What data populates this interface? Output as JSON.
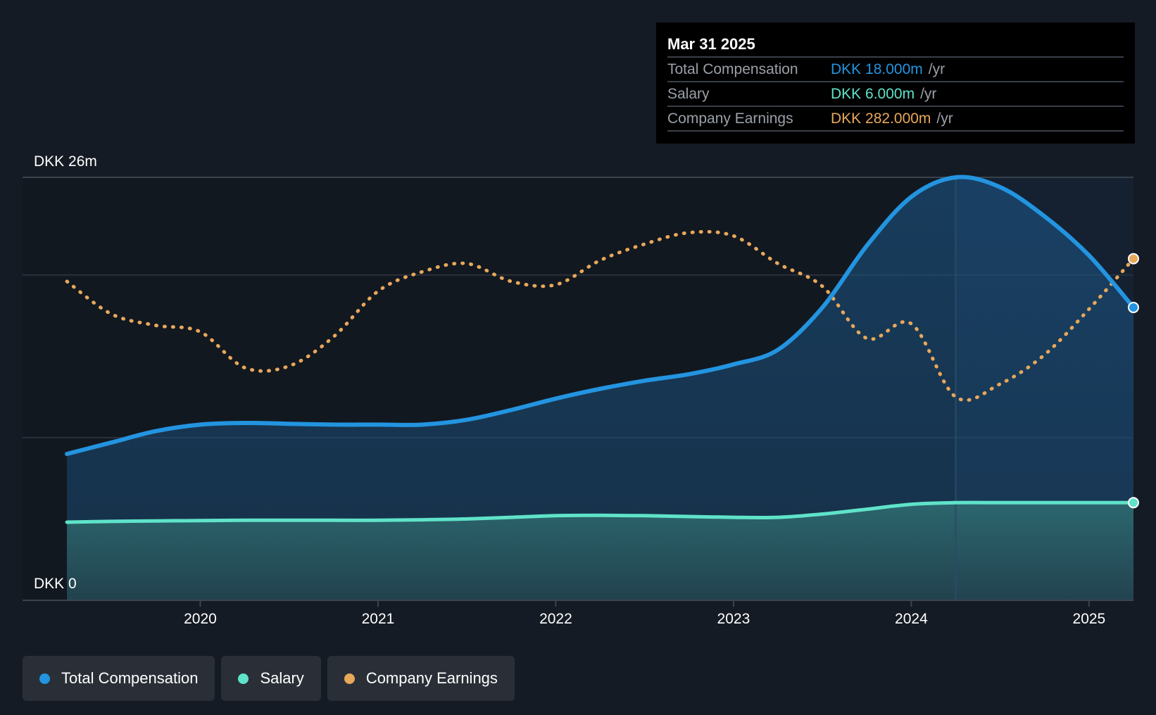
{
  "colors": {
    "background": "#151b24",
    "total_compensation": "#2394e0",
    "salary": "#5fe3c9",
    "company_earnings": "#e8a85a"
  },
  "tooltip": {
    "date": "Mar 31 2025",
    "rows": [
      {
        "label": "Total Compensation",
        "value": "DKK 18.000m",
        "unit": "/yr",
        "color": "#2394e0"
      },
      {
        "label": "Salary",
        "value": "DKK 6.000m",
        "unit": "/yr",
        "color": "#5fe3c9"
      },
      {
        "label": "Company Earnings",
        "value": "DKK 282.000m",
        "unit": "/yr",
        "color": "#e8a85a"
      }
    ]
  },
  "legend": [
    {
      "label": "Total Compensation",
      "color": "#2394e0"
    },
    {
      "label": "Salary",
      "color": "#5fe3c9"
    },
    {
      "label": "Company Earnings",
      "color": "#e8a85a"
    }
  ],
  "chart_data": {
    "type": "area",
    "y_top_label": "DKK 26m",
    "y_bottom_label": "DKK 0",
    "ylim": [
      0,
      26
    ],
    "xlim": [
      2019.0,
      2025.25
    ],
    "x_ticks": [
      2020,
      2021,
      2022,
      2023,
      2024,
      2025
    ],
    "x_tick_labels": [
      "2020",
      "2021",
      "2022",
      "2023",
      "2024",
      "2025"
    ],
    "grid_y": [
      10,
      20,
      26
    ],
    "highlight_x": 2024.25,
    "series": [
      {
        "name": "Total Compensation",
        "color": "#2394e0",
        "x": [
          2019.25,
          2019.5,
          2019.75,
          2020.0,
          2020.25,
          2020.5,
          2020.75,
          2021.0,
          2021.25,
          2021.5,
          2021.75,
          2022.0,
          2022.25,
          2022.5,
          2022.75,
          2023.0,
          2023.25,
          2023.5,
          2023.75,
          2024.0,
          2024.25,
          2024.5,
          2024.75,
          2025.0,
          2025.25
        ],
        "values": [
          9.0,
          9.7,
          10.4,
          10.8,
          10.9,
          10.85,
          10.8,
          10.8,
          10.8,
          11.1,
          11.7,
          12.4,
          13.0,
          13.5,
          13.9,
          14.5,
          15.4,
          18.0,
          21.8,
          24.8,
          26.0,
          25.4,
          23.6,
          21.2,
          18.0
        ]
      },
      {
        "name": "Salary",
        "color": "#5fe3c9",
        "x": [
          2019.25,
          2019.5,
          2019.75,
          2020.0,
          2020.25,
          2020.5,
          2020.75,
          2021.0,
          2021.25,
          2021.5,
          2021.75,
          2022.0,
          2022.25,
          2022.5,
          2022.75,
          2023.0,
          2023.25,
          2023.5,
          2023.75,
          2024.0,
          2024.25,
          2024.5,
          2024.75,
          2025.0,
          2025.25
        ],
        "values": [
          4.8,
          4.85,
          4.88,
          4.9,
          4.92,
          4.92,
          4.92,
          4.92,
          4.95,
          5.0,
          5.1,
          5.2,
          5.22,
          5.2,
          5.15,
          5.1,
          5.1,
          5.3,
          5.6,
          5.9,
          6.0,
          6.0,
          6.0,
          6.0,
          6.0
        ]
      },
      {
        "name": "Company Earnings",
        "color": "#e8a85a",
        "x": [
          2019.25,
          2019.5,
          2019.75,
          2020.0,
          2020.25,
          2020.5,
          2020.75,
          2021.0,
          2021.25,
          2021.5,
          2021.75,
          2022.0,
          2022.25,
          2022.5,
          2022.75,
          2023.0,
          2023.25,
          2023.5,
          2023.75,
          2024.0,
          2024.25,
          2024.5,
          2024.75,
          2025.0,
          2025.25
        ],
        "values": [
          19.6,
          17.6,
          16.9,
          16.5,
          14.3,
          14.4,
          16.2,
          19.0,
          20.2,
          20.7,
          19.6,
          19.4,
          20.9,
          21.9,
          22.6,
          22.4,
          20.7,
          19.3,
          16.1,
          17.0,
          12.5,
          13.3,
          15.1,
          17.9,
          21.0
        ]
      }
    ]
  }
}
